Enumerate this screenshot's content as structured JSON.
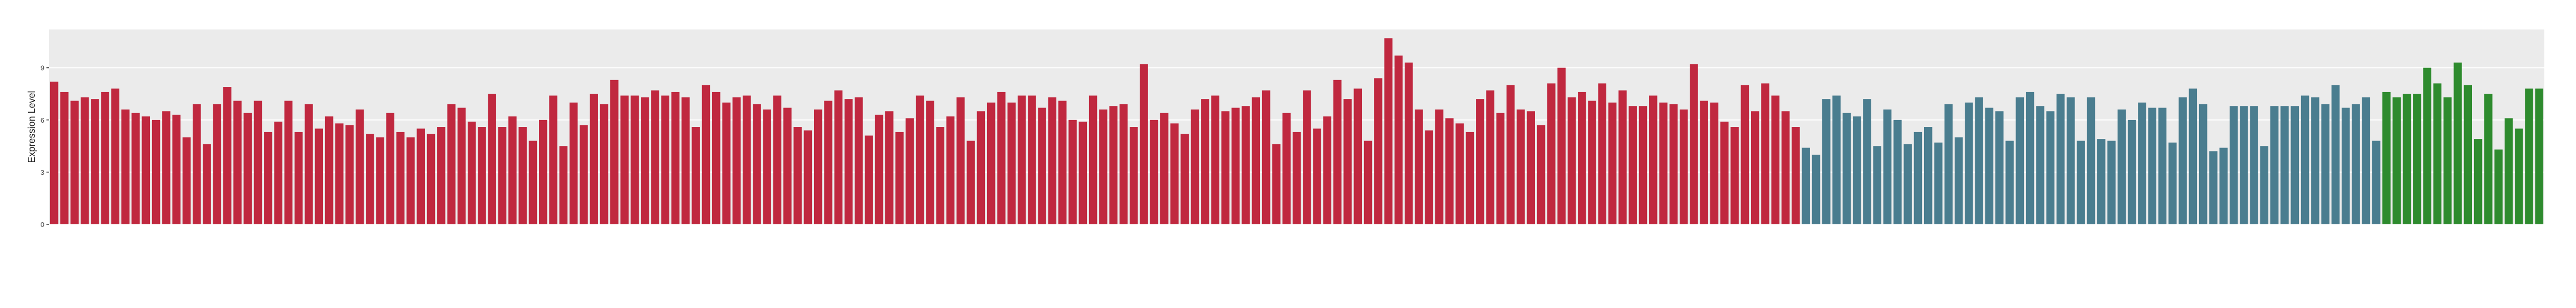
{
  "chart_data": {
    "type": "bar",
    "y_label": "Expression Level",
    "ylim": [
      0,
      11.2
    ],
    "yticks": [
      0,
      3,
      6,
      9
    ],
    "grid": true,
    "groups": [
      {
        "color": "#c0283f",
        "values": [
          8.2,
          7.6,
          7.1,
          7.3,
          7.2,
          7.6,
          7.8,
          6.6,
          6.4,
          6.2,
          6.0,
          6.5,
          6.3,
          5.0,
          6.9,
          4.6,
          6.9,
          7.9,
          7.1,
          6.4,
          7.1,
          5.3,
          5.9,
          7.1,
          5.3,
          6.9,
          5.5,
          6.2,
          5.8,
          5.7,
          6.6,
          5.2,
          5.0,
          6.4,
          5.3,
          5.0,
          5.5,
          5.2,
          5.6,
          6.9,
          6.7,
          5.9,
          5.6,
          7.5,
          5.6,
          6.2,
          5.6,
          4.8,
          6.0,
          7.4,
          4.5,
          7.0,
          5.7,
          7.5,
          6.9,
          8.3,
          7.4,
          7.4,
          7.3,
          7.7,
          7.4,
          7.6,
          7.3,
          5.6,
          8.0,
          7.6,
          7.0,
          7.3,
          7.4,
          6.9,
          6.6,
          7.4,
          6.7,
          5.6,
          5.4,
          6.6,
          7.1,
          7.7,
          7.2,
          7.3,
          5.1,
          6.3,
          6.5,
          5.3,
          6.1,
          7.4,
          7.1,
          5.6,
          6.2,
          7.3,
          4.8,
          6.5,
          7.0,
          7.6,
          7.0,
          7.4,
          7.4,
          6.7,
          7.3,
          7.1,
          6.0,
          5.9,
          7.4,
          6.6,
          6.8,
          6.9,
          5.6,
          9.2,
          6.0,
          6.4,
          5.8,
          5.2,
          6.6,
          7.2,
          7.4,
          6.5,
          6.7,
          6.8,
          7.3,
          7.7,
          4.6,
          6.4,
          5.3,
          7.7,
          5.5,
          6.2,
          8.3,
          7.2,
          7.8,
          4.8,
          8.4,
          10.7,
          9.7,
          9.3,
          6.6,
          5.4,
          6.6,
          6.1,
          5.8,
          5.3,
          7.2,
          7.7,
          6.4,
          8.0,
          6.6,
          6.5,
          5.7,
          8.1,
          9.0,
          7.3,
          7.6,
          7.1,
          8.1,
          7.0,
          7.7,
          6.8,
          6.8,
          7.4,
          7.0,
          6.9,
          6.6,
          9.2,
          7.1,
          7.0,
          5.9,
          5.6,
          8.0,
          6.5,
          8.1,
          7.4,
          6.5,
          5.6
        ]
      },
      {
        "color": "#4a7d8f",
        "values": [
          4.4,
          4.0,
          7.2,
          7.4,
          6.4,
          6.2,
          7.2,
          4.5,
          6.6,
          6.0,
          4.6,
          5.3,
          5.6,
          4.7,
          6.9,
          5.0,
          7.0,
          7.3,
          6.7,
          6.5,
          4.8,
          7.3,
          7.6,
          6.8,
          6.5,
          7.5,
          7.3,
          4.8,
          7.3,
          4.9,
          4.8,
          6.6,
          6.0,
          7.0,
          6.7,
          6.7,
          4.7,
          7.3,
          7.8,
          6.9,
          4.2,
          4.4,
          6.8,
          6.8,
          6.8,
          4.5,
          6.8,
          6.8,
          6.8,
          7.4,
          7.3,
          6.9,
          8.0,
          6.7,
          6.9,
          7.3,
          4.8
        ]
      },
      {
        "color": "#2e8b2e",
        "values": [
          7.6,
          7.3,
          7.5,
          7.5,
          9.0,
          8.1,
          7.3,
          9.3,
          8.0,
          4.9,
          7.5,
          4.3,
          6.1,
          5.5,
          7.8,
          7.8
        ]
      }
    ]
  }
}
